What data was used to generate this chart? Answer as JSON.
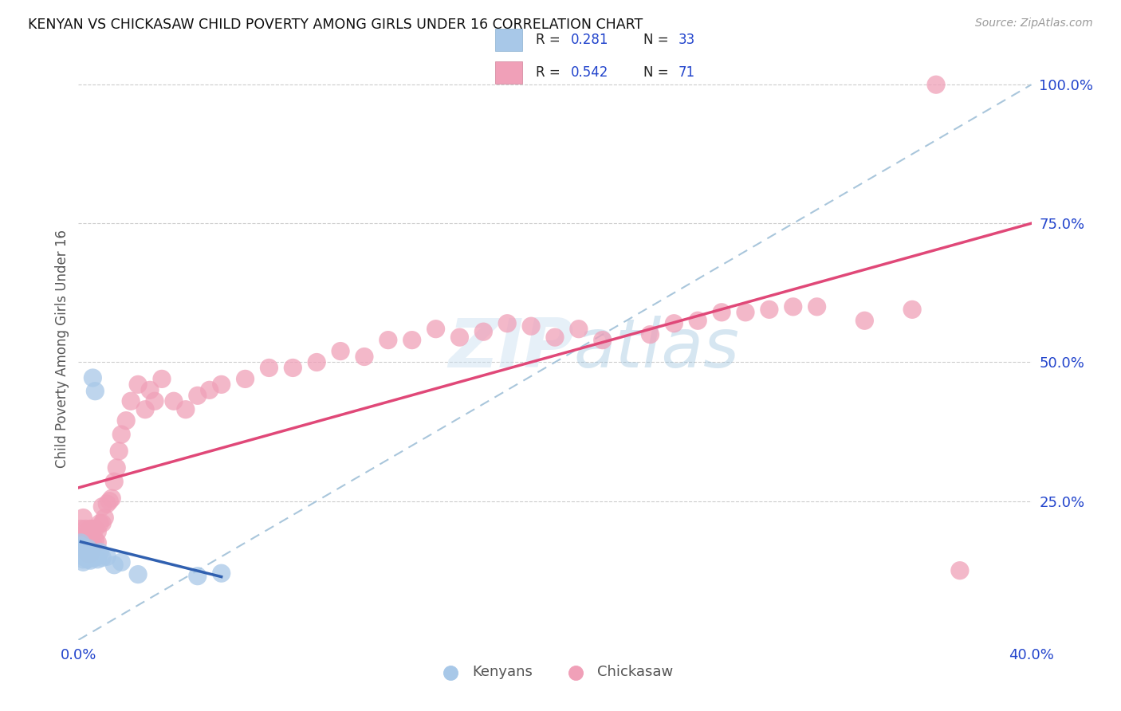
{
  "title": "KENYAN VS CHICKASAW CHILD POVERTY AMONG GIRLS UNDER 16 CORRELATION CHART",
  "source": "Source: ZipAtlas.com",
  "ylabel": "Child Poverty Among Girls Under 16",
  "xlim": [
    0.0,
    0.4
  ],
  "ylim": [
    0.0,
    1.05
  ],
  "xtick_labels": [
    "0.0%",
    "",
    "",
    "",
    "40.0%"
  ],
  "xtick_vals": [
    0.0,
    0.1,
    0.2,
    0.3,
    0.4
  ],
  "ytick_labels_right": [
    "100.0%",
    "75.0%",
    "50.0%",
    "25.0%"
  ],
  "ytick_vals_right": [
    1.0,
    0.75,
    0.5,
    0.25
  ],
  "kenyan_R": 0.281,
  "kenyan_N": 33,
  "chickasaw_R": 0.542,
  "chickasaw_N": 71,
  "kenyan_color": "#a8c8e8",
  "chickasaw_color": "#f0a0b8",
  "kenyan_line_color": "#3060b0",
  "chickasaw_line_color": "#e04878",
  "diag_line_color": "#a0c0d8",
  "watermark_zip": "ZIP",
  "watermark_atlas": "atlas",
  "legend_R_color": "#222222",
  "legend_N_color": "#2244cc",
  "kenyan_x": [
    0.001,
    0.001,
    0.001,
    0.001,
    0.002,
    0.002,
    0.002,
    0.002,
    0.002,
    0.003,
    0.003,
    0.003,
    0.003,
    0.004,
    0.004,
    0.004,
    0.004,
    0.005,
    0.005,
    0.005,
    0.006,
    0.006,
    0.007,
    0.007,
    0.008,
    0.009,
    0.01,
    0.012,
    0.015,
    0.018,
    0.025,
    0.05,
    0.06
  ],
  "kenyan_y": [
    0.175,
    0.17,
    0.165,
    0.16,
    0.165,
    0.155,
    0.15,
    0.145,
    0.14,
    0.16,
    0.155,
    0.15,
    0.148,
    0.165,
    0.158,
    0.152,
    0.145,
    0.155,
    0.148,
    0.143,
    0.472,
    0.155,
    0.448,
    0.148,
    0.145,
    0.158,
    0.148,
    0.15,
    0.135,
    0.14,
    0.118,
    0.115,
    0.12
  ],
  "chickasaw_x": [
    0.001,
    0.001,
    0.002,
    0.002,
    0.002,
    0.003,
    0.003,
    0.003,
    0.004,
    0.004,
    0.004,
    0.005,
    0.005,
    0.005,
    0.006,
    0.006,
    0.007,
    0.007,
    0.008,
    0.008,
    0.009,
    0.01,
    0.01,
    0.011,
    0.012,
    0.013,
    0.014,
    0.015,
    0.016,
    0.017,
    0.018,
    0.02,
    0.022,
    0.025,
    0.028,
    0.03,
    0.032,
    0.035,
    0.04,
    0.045,
    0.05,
    0.055,
    0.06,
    0.07,
    0.08,
    0.09,
    0.1,
    0.11,
    0.12,
    0.13,
    0.14,
    0.15,
    0.16,
    0.17,
    0.18,
    0.19,
    0.2,
    0.21,
    0.22,
    0.24,
    0.25,
    0.26,
    0.27,
    0.28,
    0.29,
    0.3,
    0.31,
    0.33,
    0.35,
    0.37,
    0.36
  ],
  "chickasaw_y": [
    0.2,
    0.18,
    0.22,
    0.19,
    0.165,
    0.2,
    0.185,
    0.16,
    0.19,
    0.175,
    0.155,
    0.2,
    0.175,
    0.155,
    0.2,
    0.175,
    0.2,
    0.18,
    0.195,
    0.175,
    0.21,
    0.21,
    0.24,
    0.22,
    0.245,
    0.25,
    0.255,
    0.285,
    0.31,
    0.34,
    0.37,
    0.395,
    0.43,
    0.46,
    0.415,
    0.45,
    0.43,
    0.47,
    0.43,
    0.415,
    0.44,
    0.45,
    0.46,
    0.47,
    0.49,
    0.49,
    0.5,
    0.52,
    0.51,
    0.54,
    0.54,
    0.56,
    0.545,
    0.555,
    0.57,
    0.565,
    0.545,
    0.56,
    0.54,
    0.55,
    0.57,
    0.575,
    0.59,
    0.59,
    0.595,
    0.6,
    0.6,
    0.575,
    0.595,
    0.125,
    1.0
  ]
}
